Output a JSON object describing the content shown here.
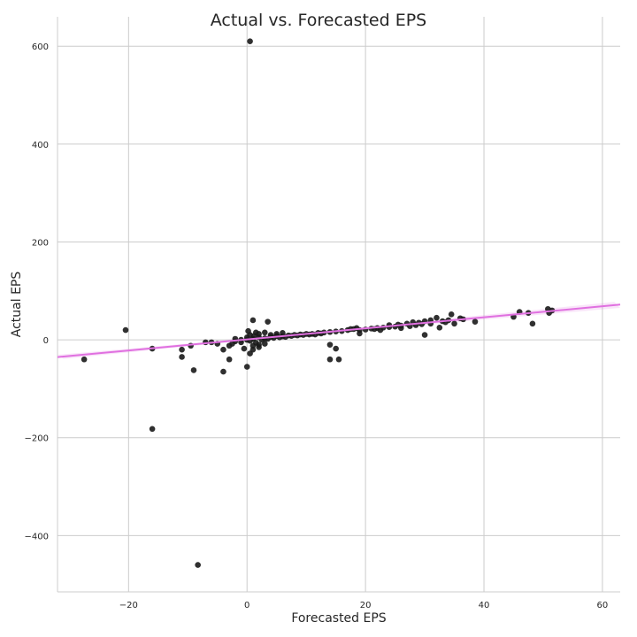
{
  "chart_data": {
    "type": "scatter",
    "title": "Actual vs. Forecasted EPS",
    "xlabel": "Forecasted EPS",
    "ylabel": "Actual EPS",
    "xlim": [
      -32,
      63
    ],
    "ylim": [
      -515,
      660
    ],
    "xticks": [
      -20,
      0,
      20,
      40,
      60
    ],
    "yticks": [
      -400,
      -200,
      0,
      200,
      400,
      600
    ],
    "xtick_labels": [
      "−20",
      "0",
      "20",
      "40",
      "60"
    ],
    "ytick_labels": [
      "−400",
      "−200",
      "0",
      "200",
      "400",
      "600"
    ],
    "grid": true,
    "point_color": "#1a1a1a",
    "regression_line": {
      "color": "#e070e0",
      "slope": 1.13,
      "intercept": 0.8
    },
    "points": [
      [
        0.5,
        610
      ],
      [
        -20.5,
        20
      ],
      [
        -27.5,
        -40
      ],
      [
        -16,
        -182
      ],
      [
        -8.3,
        -460
      ],
      [
        -16,
        -18
      ],
      [
        -11,
        -20
      ],
      [
        -11,
        -35
      ],
      [
        -9.5,
        -12
      ],
      [
        -9,
        -62
      ],
      [
        -4,
        -65
      ],
      [
        -4,
        -20
      ],
      [
        -3,
        -40
      ],
      [
        -7,
        -5
      ],
      [
        -6,
        -5
      ],
      [
        -5,
        -8
      ],
      [
        0,
        -55
      ],
      [
        0.5,
        -28
      ],
      [
        1,
        40
      ],
      [
        3.5,
        37
      ],
      [
        1,
        -20
      ],
      [
        2,
        -10
      ],
      [
        3,
        -8
      ],
      [
        -1,
        -5
      ],
      [
        -2,
        -3
      ],
      [
        0,
        5
      ],
      [
        0.5,
        10
      ],
      [
        1.5,
        15
      ],
      [
        0,
        0
      ],
      [
        1,
        2
      ],
      [
        2,
        5
      ],
      [
        3,
        3
      ],
      [
        4,
        6
      ],
      [
        5,
        8
      ],
      [
        6,
        7
      ],
      [
        7,
        9
      ],
      [
        8,
        10
      ],
      [
        9,
        11
      ],
      [
        10,
        12
      ],
      [
        11,
        12
      ],
      [
        12,
        14
      ],
      [
        13,
        15
      ],
      [
        14,
        16
      ],
      [
        15,
        17
      ],
      [
        16,
        18
      ],
      [
        17,
        20
      ],
      [
        18,
        22
      ],
      [
        19,
        20
      ],
      [
        20,
        21
      ],
      [
        21,
        23
      ],
      [
        22,
        24
      ],
      [
        23,
        25
      ],
      [
        24,
        26
      ],
      [
        25,
        27
      ],
      [
        26,
        29
      ],
      [
        27,
        33
      ],
      [
        28,
        36
      ],
      [
        29,
        35
      ],
      [
        30,
        38
      ],
      [
        31,
        33
      ],
      [
        32,
        45
      ],
      [
        32.5,
        25
      ],
      [
        33,
        38
      ],
      [
        34,
        40
      ],
      [
        34.5,
        52
      ],
      [
        35,
        33
      ],
      [
        36,
        44
      ],
      [
        38.5,
        37
      ],
      [
        30,
        10
      ],
      [
        14,
        -40
      ],
      [
        15.5,
        -40
      ],
      [
        14,
        -10
      ],
      [
        15,
        -18
      ],
      [
        19,
        13
      ],
      [
        45,
        47
      ],
      [
        46,
        57
      ],
      [
        47.5,
        55
      ],
      [
        48.2,
        33
      ],
      [
        50.8,
        63
      ],
      [
        51,
        55
      ],
      [
        51.5,
        60
      ],
      [
        24,
        30
      ],
      [
        26,
        24
      ],
      [
        -2,
        2
      ],
      [
        -1,
        0
      ],
      [
        0.5,
        -2
      ],
      [
        1.5,
        -6
      ],
      [
        2.5,
        0
      ],
      [
        3.5,
        2
      ],
      [
        4.5,
        4
      ],
      [
        5.5,
        5
      ],
      [
        6.5,
        6
      ],
      [
        7.5,
        8
      ],
      [
        8.5,
        9
      ],
      [
        9.5,
        10
      ],
      [
        10.5,
        11
      ],
      [
        11.5,
        11
      ],
      [
        12.5,
        13
      ],
      [
        2,
        12
      ],
      [
        3,
        15
      ],
      [
        4,
        10
      ],
      [
        5,
        12
      ],
      [
        6,
        14
      ],
      [
        1,
        -12
      ],
      [
        2,
        -15
      ],
      [
        -0.5,
        -18
      ],
      [
        0.2,
        18
      ],
      [
        1.2,
        8
      ],
      [
        -3,
        -12
      ],
      [
        -2.5,
        -8
      ],
      [
        17.5,
        22
      ],
      [
        18.5,
        24
      ],
      [
        21.5,
        22
      ],
      [
        22.5,
        20
      ],
      [
        25.5,
        31
      ],
      [
        27.5,
        28
      ],
      [
        28.5,
        30
      ],
      [
        29.5,
        32
      ],
      [
        31,
        40
      ],
      [
        33.5,
        36
      ],
      [
        36.5,
        42
      ]
    ]
  }
}
